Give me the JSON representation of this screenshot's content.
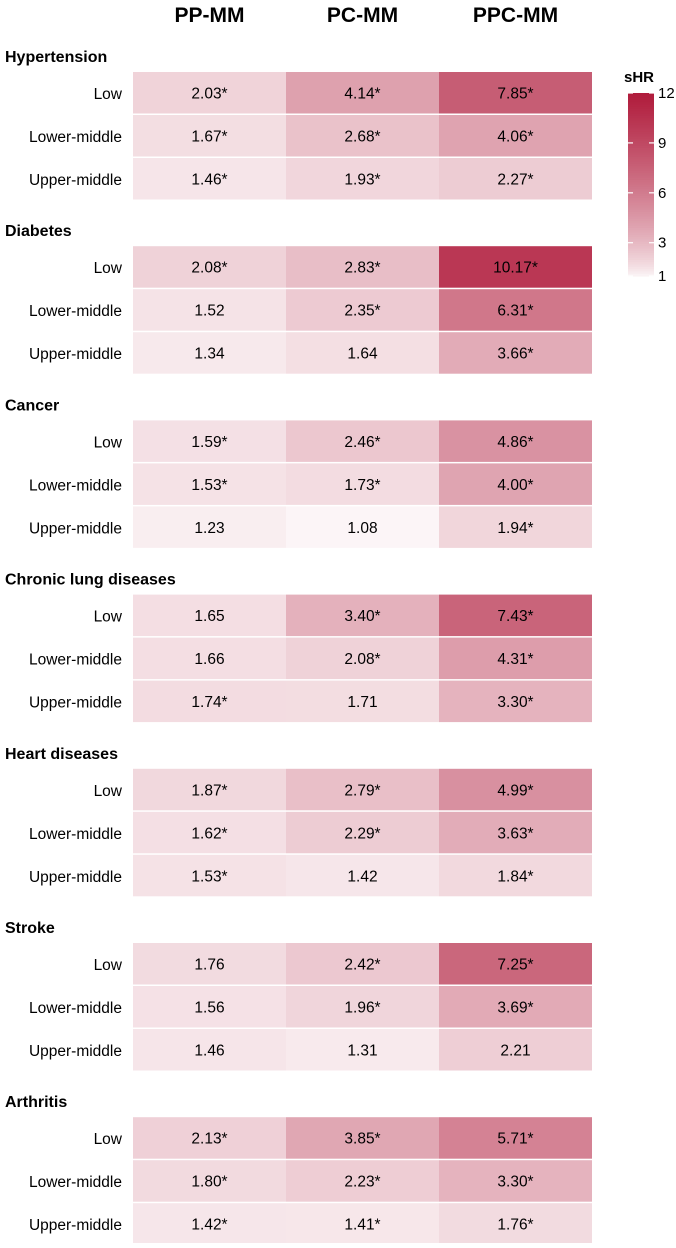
{
  "chart_data": {
    "type": "heatmap",
    "columns": [
      "PP-MM",
      "PC-MM",
      "PPC-MM"
    ],
    "row_labels": [
      "Low",
      "Lower-middle",
      "Upper-middle"
    ],
    "panels": [
      {
        "title": "Hypertension",
        "values": [
          [
            2.03,
            4.14,
            7.85
          ],
          [
            1.67,
            2.68,
            4.06
          ],
          [
            1.46,
            1.93,
            2.27
          ]
        ],
        "labels": [
          [
            "2.03*",
            "4.14*",
            "7.85*"
          ],
          [
            "1.67*",
            "2.68*",
            "4.06*"
          ],
          [
            "1.46*",
            "1.93*",
            "2.27*"
          ]
        ]
      },
      {
        "title": "Diabetes",
        "values": [
          [
            2.08,
            2.83,
            10.17
          ],
          [
            1.52,
            2.35,
            6.31
          ],
          [
            1.34,
            1.64,
            3.66
          ]
        ],
        "labels": [
          [
            "2.08*",
            "2.83*",
            "10.17*"
          ],
          [
            "1.52",
            "2.35*",
            "6.31*"
          ],
          [
            "1.34",
            "1.64",
            "3.66*"
          ]
        ]
      },
      {
        "title": "Cancer",
        "values": [
          [
            1.59,
            2.46,
            4.86
          ],
          [
            1.53,
            1.73,
            4.0
          ],
          [
            1.23,
            1.08,
            1.94
          ]
        ],
        "labels": [
          [
            "1.59*",
            "2.46*",
            "4.86*"
          ],
          [
            "1.53*",
            "1.73*",
            "4.00*"
          ],
          [
            "1.23",
            "1.08",
            "1.94*"
          ]
        ]
      },
      {
        "title": "Chronic lung diseases",
        "values": [
          [
            1.65,
            3.4,
            7.43
          ],
          [
            1.66,
            2.08,
            4.31
          ],
          [
            1.74,
            1.71,
            3.3
          ]
        ],
        "labels": [
          [
            "1.65",
            "3.40*",
            "7.43*"
          ],
          [
            "1.66",
            "2.08*",
            "4.31*"
          ],
          [
            "1.74*",
            "1.71",
            "3.30*"
          ]
        ]
      },
      {
        "title": "Heart diseases",
        "values": [
          [
            1.87,
            2.79,
            4.99
          ],
          [
            1.62,
            2.29,
            3.63
          ],
          [
            1.53,
            1.42,
            1.84
          ]
        ],
        "labels": [
          [
            "1.87*",
            "2.79*",
            "4.99*"
          ],
          [
            "1.62*",
            "2.29*",
            "3.63*"
          ],
          [
            "1.53*",
            "1.42",
            "1.84*"
          ]
        ]
      },
      {
        "title": "Stroke",
        "values": [
          [
            1.76,
            2.42,
            7.25
          ],
          [
            1.56,
            1.96,
            3.69
          ],
          [
            1.46,
            1.31,
            2.21
          ]
        ],
        "labels": [
          [
            "1.76",
            "2.42*",
            "7.25*"
          ],
          [
            "1.56",
            "1.96*",
            "3.69*"
          ],
          [
            "1.46",
            "1.31",
            "2.21"
          ]
        ]
      },
      {
        "title": "Arthritis",
        "values": [
          [
            2.13,
            3.85,
            5.71
          ],
          [
            1.8,
            2.23,
            3.3
          ],
          [
            1.42,
            1.41,
            1.76
          ]
        ],
        "labels": [
          [
            "2.13*",
            "3.85*",
            "5.71*"
          ],
          [
            "1.80*",
            "2.23*",
            "3.30*"
          ],
          [
            "1.42*",
            "1.41*",
            "1.76*"
          ]
        ]
      }
    ],
    "legend": {
      "title": "sHR",
      "ticks": [
        1,
        3,
        6,
        9,
        12
      ],
      "tick_labels": [
        "1",
        "3",
        "6",
        "9",
        "12"
      ],
      "range": [
        1,
        12
      ],
      "color_low": "#ffffff",
      "color_high": "#b01c3c"
    }
  }
}
